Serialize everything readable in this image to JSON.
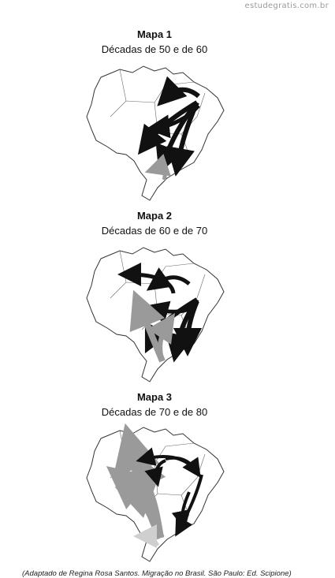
{
  "site": {
    "watermark": "estudegratis.com.br"
  },
  "maps": [
    {
      "title": "Mapa 1",
      "subtitle": "Décadas de 50 e de 60"
    },
    {
      "title": "Mapa 2",
      "subtitle": "Décadas de 60 e de 70"
    },
    {
      "title": "Mapa 3",
      "subtitle": "Décadas de 70 e de 80"
    }
  ],
  "colors": {
    "flow_dark": "#111111",
    "flow_gray": "#9a9a9a",
    "border": "#333333"
  },
  "source": "(Adaptado de Regina Rosa Santos. Migração no Brasil. São Paulo: Ed. Scipione)"
}
